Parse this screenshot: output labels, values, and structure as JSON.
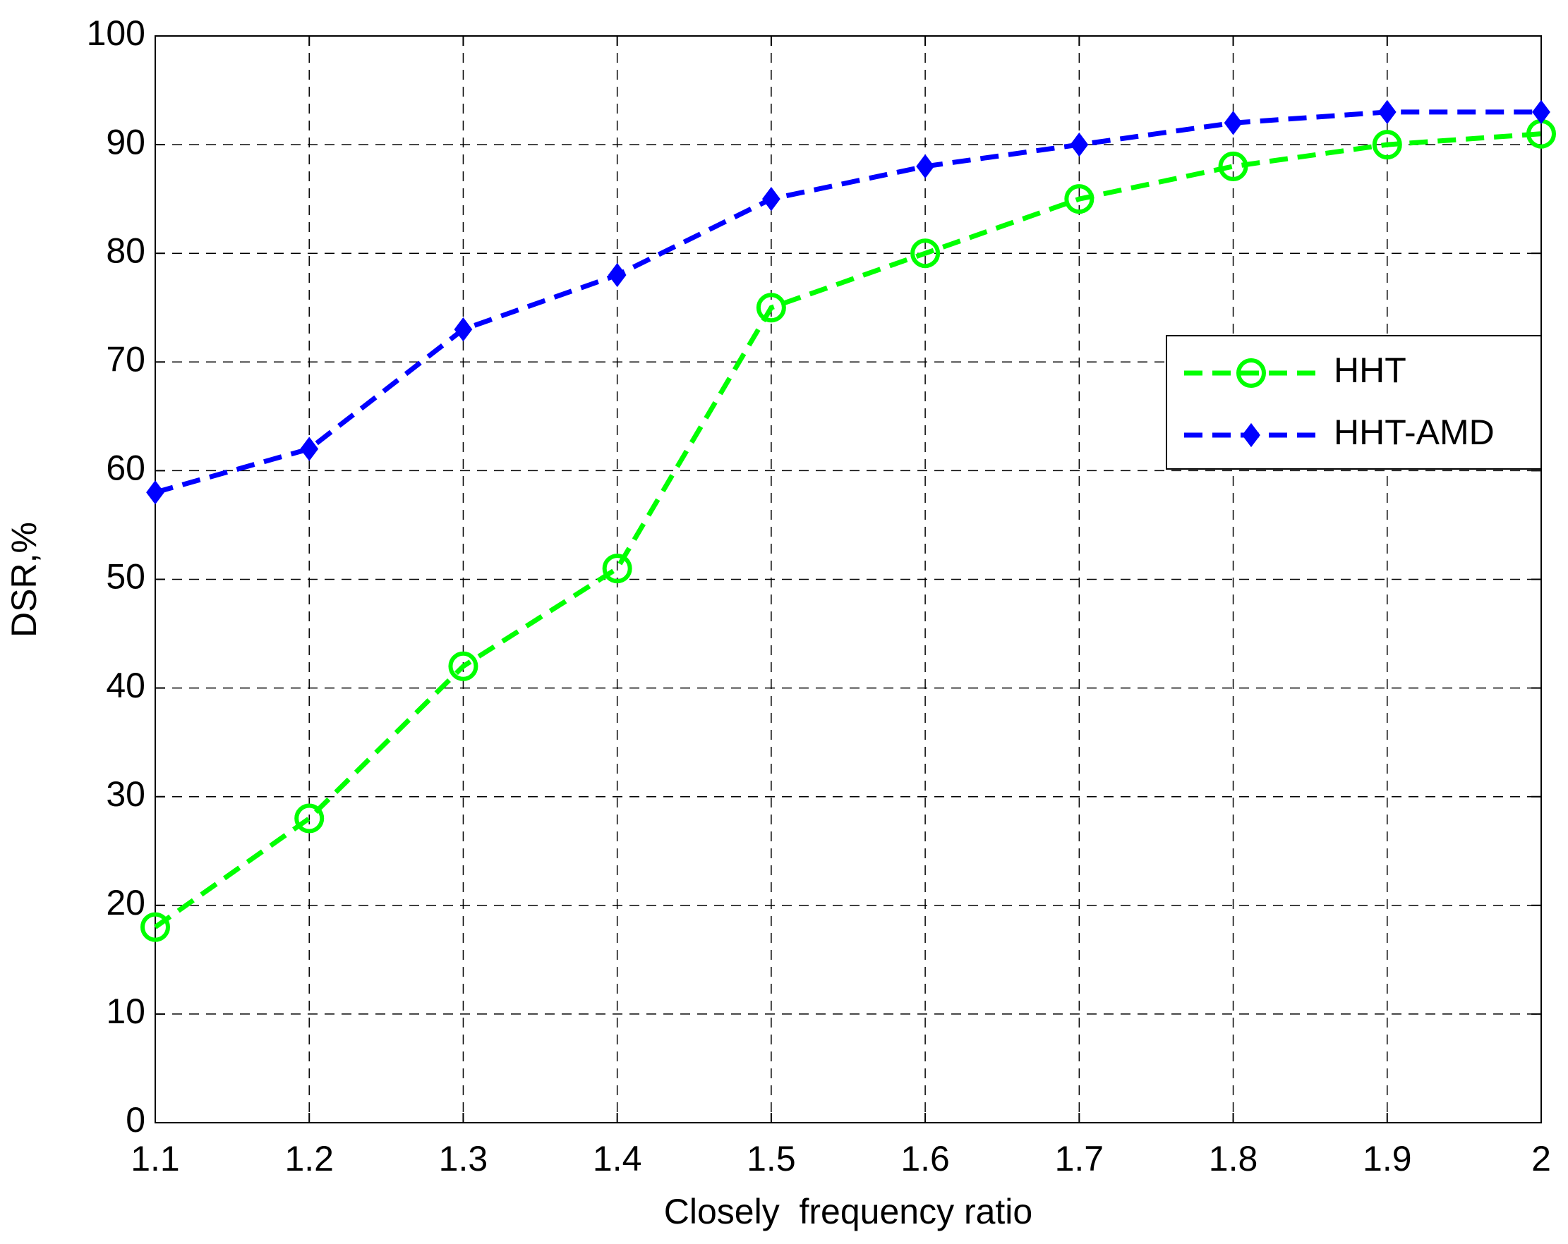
{
  "chart_data": {
    "type": "line",
    "xlabel": "Closely  frequency ratio",
    "ylabel": "DSR,%",
    "x": [
      1.1,
      1.2,
      1.3,
      1.4,
      1.5,
      1.6,
      1.7,
      1.8,
      1.9,
      2
    ],
    "series": [
      {
        "name": "HHT",
        "color": "#00ff00",
        "marker": "circle",
        "values": [
          18,
          28,
          42,
          51,
          75,
          80,
          85,
          88,
          90,
          91
        ]
      },
      {
        "name": "HHT-AMD",
        "color": "#0000ff",
        "marker": "diamond",
        "values": [
          58,
          62,
          73,
          78,
          85,
          88,
          90,
          92,
          93,
          93
        ]
      }
    ],
    "xlim": [
      1.1,
      2
    ],
    "xticks": [
      1.1,
      1.2,
      1.3,
      1.4,
      1.5,
      1.6,
      1.7,
      1.8,
      1.9,
      2
    ],
    "ylim": [
      0,
      100
    ],
    "yticks": [
      0,
      10,
      20,
      30,
      40,
      50,
      60,
      70,
      80,
      90,
      100
    ],
    "grid": true,
    "legend": "upper right"
  }
}
